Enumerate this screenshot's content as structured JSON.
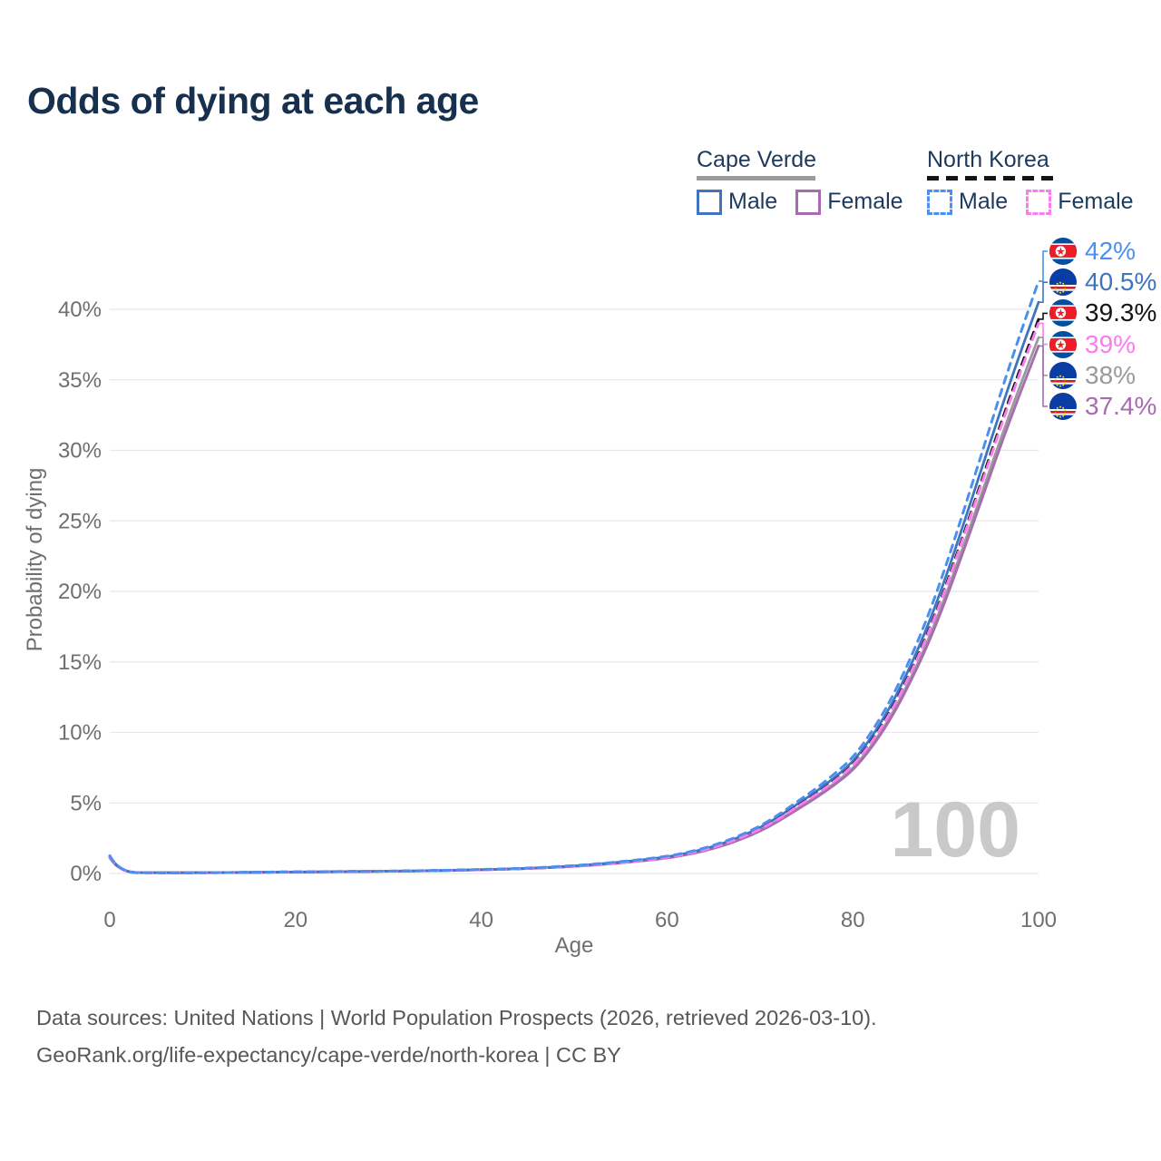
{
  "title": "Odds of dying at each age",
  "watermark_age": "100",
  "legend": {
    "groups": [
      {
        "country": "Cape Verde",
        "line_style": "solid",
        "underline_color": "#9a9a9a",
        "items": [
          {
            "label": "Male",
            "color": "#3f74bf"
          },
          {
            "label": "Female",
            "color": "#a76cb0"
          }
        ]
      },
      {
        "country": "North Korea",
        "line_style": "dashed",
        "underline_color": "#141414",
        "items": [
          {
            "label": "Male",
            "color": "#4a8ff2"
          },
          {
            "label": "Female",
            "color": "#fb7bf0"
          }
        ]
      }
    ]
  },
  "footer": {
    "line1": "Data sources: United Nations | World Population Prospects (2026, retrieved 2026-03-10).",
    "line2": "GeoRank.org/life-expectancy/cape-verde/north-korea | CC BY"
  },
  "chart_data": {
    "type": "line",
    "title": "Odds of dying at each age",
    "xlabel": "Age",
    "ylabel": "Probability of dying",
    "xlim": [
      0,
      100
    ],
    "ylim_percent": [
      0,
      40
    ],
    "x_ticks": [
      0,
      20,
      40,
      60,
      80,
      100
    ],
    "y_ticks_percent": [
      0,
      5,
      10,
      15,
      20,
      25,
      30,
      35,
      40
    ],
    "grid": "horizontal",
    "legend_position": "top-right",
    "ages": [
      0,
      1,
      5,
      10,
      15,
      20,
      25,
      30,
      35,
      40,
      45,
      50,
      55,
      60,
      62,
      64,
      66,
      68,
      70,
      72,
      74,
      76,
      78,
      80,
      82,
      84,
      86,
      88,
      90,
      92,
      94,
      96,
      98,
      100
    ],
    "series": [
      {
        "name": "Cape Verde Total",
        "country": "Cape Verde",
        "sex": "Total",
        "color": "#9a9a9a",
        "dashed": false,
        "end_value_percent": 38,
        "end_label": "38%",
        "values": [
          1.14,
          0.07,
          0.05,
          0.05,
          0.08,
          0.1,
          0.12,
          0.15,
          0.19,
          0.26,
          0.34,
          0.49,
          0.74,
          1.09,
          1.33,
          1.62,
          2.0,
          2.47,
          3.04,
          3.75,
          4.61,
          5.42,
          6.37,
          7.41,
          9.03,
          11.02,
          13.49,
          16.34,
          19.67,
          23.37,
          27.17,
          30.97,
          34.58,
          38.0
        ]
      },
      {
        "name": "Cape Verde Female",
        "country": "Cape Verde",
        "sex": "Female",
        "color": "#a76cb0",
        "dashed": false,
        "end_value_percent": 37.4,
        "end_label": "37.4%",
        "values": [
          1.12,
          0.07,
          0.05,
          0.05,
          0.07,
          0.1,
          0.12,
          0.15,
          0.19,
          0.25,
          0.34,
          0.49,
          0.73,
          1.08,
          1.31,
          1.59,
          1.96,
          2.43,
          2.99,
          3.69,
          4.53,
          5.33,
          6.26,
          7.29,
          8.88,
          10.85,
          13.28,
          16.08,
          19.35,
          23.0,
          26.74,
          30.48,
          34.03,
          37.4
        ]
      },
      {
        "name": "Cape Verde Male",
        "country": "Cape Verde",
        "sex": "Male",
        "color": "#3f74bf",
        "dashed": false,
        "end_value_percent": 40.5,
        "end_label": "40.5%",
        "values": [
          1.22,
          0.07,
          0.05,
          0.05,
          0.08,
          0.11,
          0.13,
          0.16,
          0.2,
          0.27,
          0.36,
          0.53,
          0.79,
          1.16,
          1.42,
          1.72,
          2.13,
          2.63,
          3.24,
          4.0,
          4.91,
          5.77,
          6.78,
          7.9,
          9.62,
          11.75,
          14.38,
          17.42,
          20.96,
          24.91,
          28.96,
          33.01,
          36.86,
          40.5
        ]
      },
      {
        "name": "North Korea Total",
        "country": "North Korea",
        "sex": "Total",
        "color": "#141414",
        "dashed": true,
        "end_value_percent": 39.3,
        "end_label": "39.3%",
        "values": [
          1.18,
          0.07,
          0.05,
          0.05,
          0.08,
          0.11,
          0.13,
          0.16,
          0.2,
          0.27,
          0.35,
          0.51,
          0.77,
          1.13,
          1.38,
          1.67,
          2.06,
          2.55,
          3.14,
          3.88,
          4.77,
          5.6,
          6.58,
          7.66,
          9.33,
          11.4,
          13.95,
          16.9,
          20.34,
          24.17,
          28.1,
          32.03,
          35.76,
          39.3
        ]
      },
      {
        "name": "North Korea Female",
        "country": "North Korea",
        "sex": "Female",
        "color": "#fb7bf0",
        "dashed": true,
        "end_value_percent": 39,
        "end_label": "39%",
        "values": [
          1.17,
          0.07,
          0.05,
          0.05,
          0.08,
          0.11,
          0.13,
          0.16,
          0.2,
          0.26,
          0.35,
          0.51,
          0.76,
          1.12,
          1.37,
          1.66,
          2.05,
          2.54,
          3.12,
          3.85,
          4.73,
          5.56,
          6.53,
          7.61,
          9.26,
          11.31,
          13.85,
          16.77,
          20.18,
          23.99,
          27.89,
          31.79,
          35.49,
          39.0
        ]
      },
      {
        "name": "North Korea Male",
        "country": "North Korea",
        "sex": "Male",
        "color": "#4a8ff2",
        "dashed": true,
        "end_value_percent": 42,
        "end_label": "42%",
        "values": [
          1.26,
          0.07,
          0.05,
          0.05,
          0.08,
          0.12,
          0.14,
          0.17,
          0.21,
          0.28,
          0.38,
          0.55,
          0.82,
          1.21,
          1.47,
          1.79,
          2.21,
          2.73,
          3.36,
          4.15,
          5.09,
          5.99,
          7.04,
          8.19,
          9.98,
          12.18,
          14.91,
          18.06,
          21.74,
          25.83,
          30.03,
          34.23,
          38.22,
          42.0
        ]
      }
    ]
  }
}
